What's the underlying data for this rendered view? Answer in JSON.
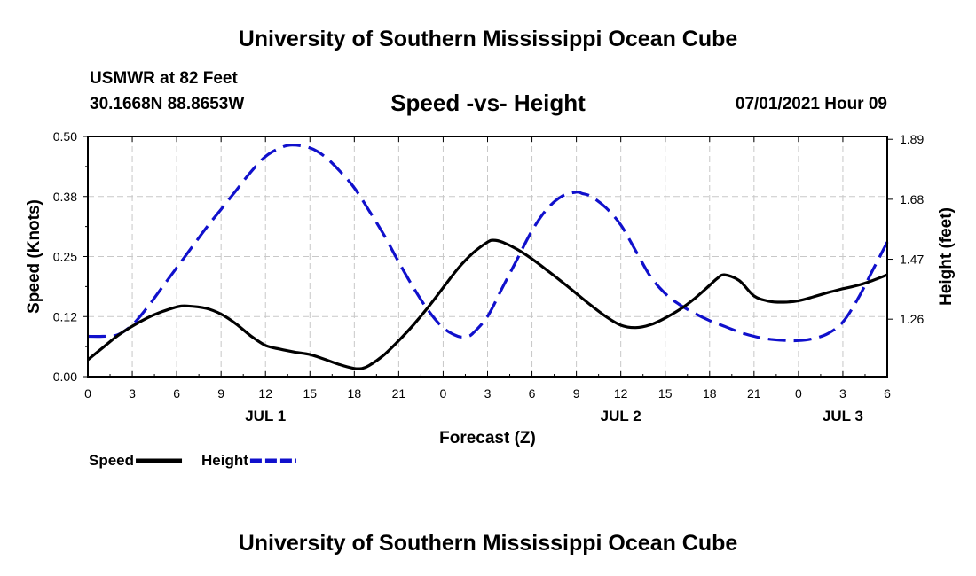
{
  "header": {
    "title": "University of Southern Mississippi Ocean Cube",
    "station": "USMWR at 82 Feet",
    "coords": "30.1668N  88.8653W",
    "subtitle": "Speed -vs- Height",
    "datetime": "07/01/2021 Hour 09"
  },
  "footer": {
    "title": "University of Southern Mississippi Ocean Cube"
  },
  "chart_data": {
    "type": "line",
    "xlabel": "Forecast (Z)",
    "ylabel_left": "Speed (Knots)",
    "ylabel_right": "Height (feet)",
    "x_unit": "hours since 2021-07-01 00Z",
    "xlim": [
      0,
      54
    ],
    "ylim_left": [
      0,
      0.5
    ],
    "ylim_right": [
      1.0588,
      1.9
    ],
    "yticks_left": [
      "0.00",
      "0.12",
      "0.25",
      "0.38",
      "0.50"
    ],
    "yticks_right": [
      "1.26",
      "1.47",
      "1.68",
      "1.89"
    ],
    "xticks": [
      "0",
      "3",
      "6",
      "9",
      "12",
      "15",
      "18",
      "21",
      "0",
      "3",
      "6",
      "9",
      "12",
      "15",
      "18",
      "21",
      "0",
      "3",
      "6"
    ],
    "day_labels": [
      {
        "label": "JUL 1",
        "x": 12
      },
      {
        "label": "JUL 2",
        "x": 36
      },
      {
        "label": "JUL 3",
        "x": 51
      }
    ],
    "grid": true,
    "legend_position": "bottom-left",
    "series": [
      {
        "name": "Speed",
        "axis": "left",
        "color": "#000000",
        "style": "solid",
        "x": [
          0,
          1,
          2,
          3,
          4,
          5,
          6,
          6.7,
          8,
          9,
          10,
          11,
          12,
          13,
          14,
          15,
          16,
          17,
          18,
          18.5,
          19,
          20,
          21,
          22,
          23,
          24,
          25,
          26,
          27,
          27.4,
          28,
          29,
          30,
          31,
          32,
          33,
          34,
          35,
          36,
          37,
          38,
          39,
          40,
          41,
          42,
          42.5,
          43,
          44,
          45,
          46,
          47,
          48,
          49,
          50,
          51,
          52,
          53,
          54
        ],
        "y": [
          0.035,
          0.06,
          0.085,
          0.105,
          0.122,
          0.135,
          0.145,
          0.147,
          0.142,
          0.13,
          0.11,
          0.085,
          0.065,
          0.057,
          0.051,
          0.046,
          0.036,
          0.025,
          0.017,
          0.017,
          0.023,
          0.045,
          0.075,
          0.108,
          0.145,
          0.185,
          0.225,
          0.257,
          0.28,
          0.284,
          0.28,
          0.265,
          0.245,
          0.222,
          0.198,
          0.173,
          0.148,
          0.125,
          0.107,
          0.102,
          0.108,
          0.122,
          0.14,
          0.163,
          0.19,
          0.204,
          0.212,
          0.2,
          0.168,
          0.157,
          0.155,
          0.158,
          0.166,
          0.175,
          0.183,
          0.19,
          0.2,
          0.212
        ]
      },
      {
        "name": "Height",
        "axis": "right",
        "color": "#1010cc",
        "style": "dashed",
        "x": [
          0,
          1,
          2,
          3,
          4,
          5,
          6,
          7,
          8,
          9,
          10,
          11,
          12,
          13,
          13.8,
          15,
          16,
          17,
          18,
          19,
          20,
          21,
          22,
          23,
          24,
          25,
          25.6,
          26,
          27,
          28,
          29,
          30,
          31,
          32,
          33,
          33.4,
          34,
          35,
          36,
          37,
          38,
          39,
          40,
          41,
          42,
          43,
          44,
          45,
          46,
          47,
          48,
          49,
          50,
          51,
          52,
          53,
          54
        ],
        "y": [
          1.2,
          1.2,
          1.205,
          1.24,
          1.3,
          1.37,
          1.44,
          1.51,
          1.58,
          1.645,
          1.71,
          1.775,
          1.83,
          1.86,
          1.87,
          1.86,
          1.83,
          1.78,
          1.72,
          1.64,
          1.555,
          1.46,
          1.37,
          1.29,
          1.23,
          1.2,
          1.2,
          1.21,
          1.27,
          1.37,
          1.47,
          1.57,
          1.645,
          1.69,
          1.705,
          1.7,
          1.69,
          1.65,
          1.59,
          1.5,
          1.41,
          1.35,
          1.31,
          1.28,
          1.255,
          1.235,
          1.215,
          1.2,
          1.19,
          1.186,
          1.185,
          1.192,
          1.21,
          1.25,
          1.33,
          1.43,
          1.53
        ]
      }
    ]
  }
}
